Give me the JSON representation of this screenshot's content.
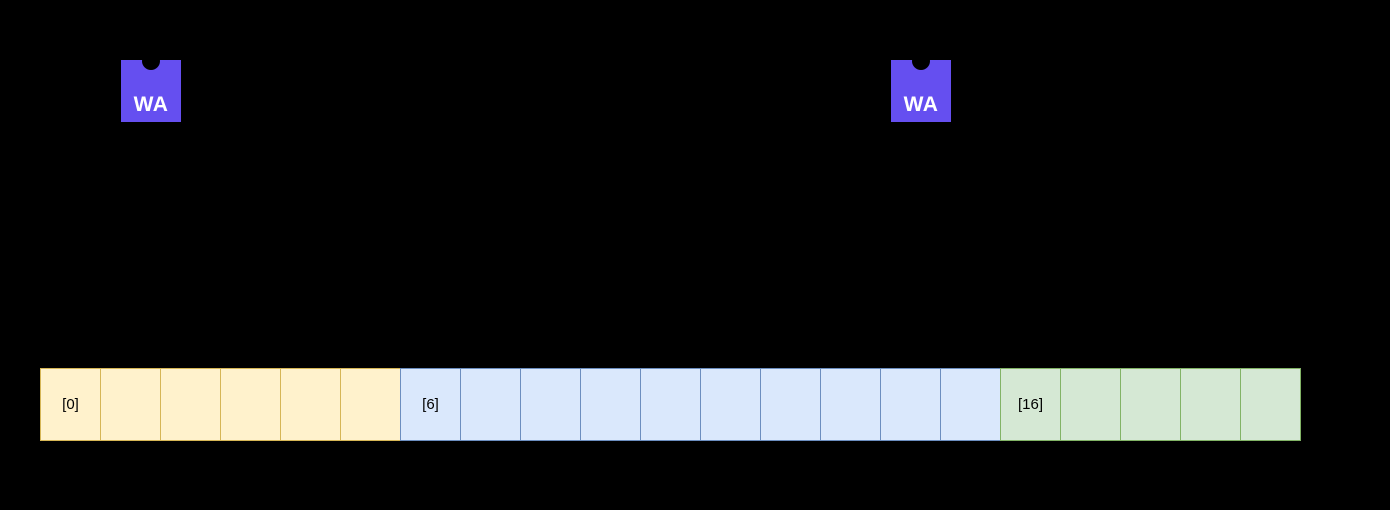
{
  "canvas": {
    "background": "#000000"
  },
  "logos": [
    {
      "text": "WA",
      "fill": "#654FF0",
      "text_color": "#FFFFFF"
    },
    {
      "text": "WA",
      "fill": "#654FF0",
      "text_color": "#FFFFFF"
    }
  ],
  "memory_bar": {
    "label_color": "#000000",
    "segments": [
      {
        "name": "yellow-segment",
        "fill": "#FFF2CC",
        "stroke": "#D6B656",
        "cell_count": 6,
        "start_index": 0,
        "first_cell_label": "[0]"
      },
      {
        "name": "blue-segment",
        "fill": "#DAE8FC",
        "stroke": "#6C8EBF",
        "cell_count": 10,
        "start_index": 6,
        "first_cell_label": "[6]"
      },
      {
        "name": "green-segment",
        "fill": "#D5E8D4",
        "stroke": "#82B366",
        "cell_count": 5,
        "start_index": 16,
        "first_cell_label": "[16]"
      }
    ]
  }
}
